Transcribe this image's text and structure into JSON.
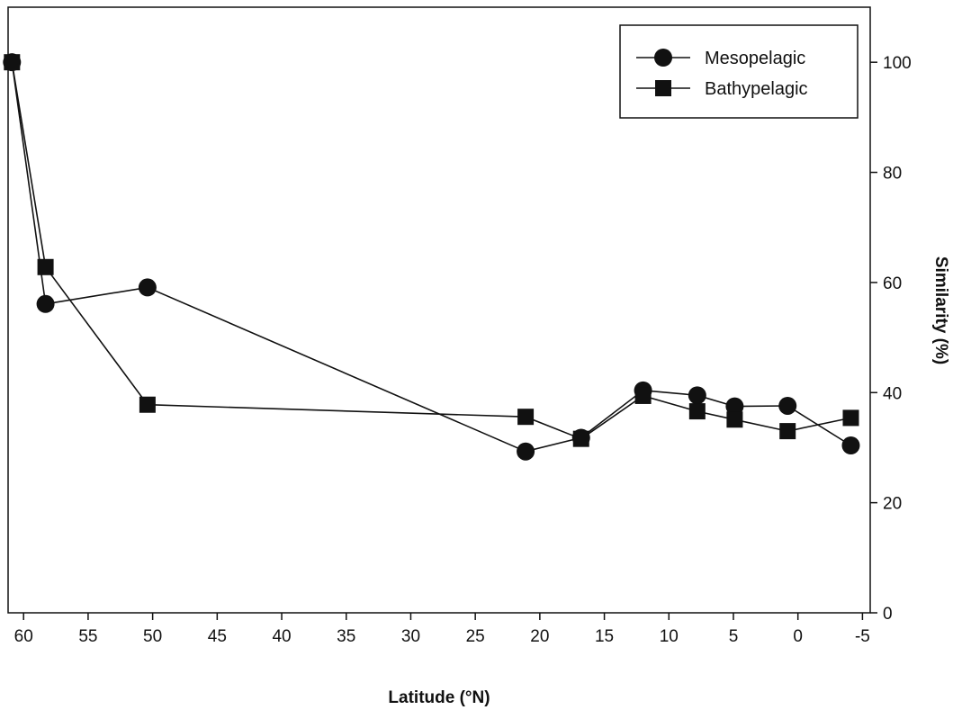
{
  "chart_data": {
    "type": "line",
    "xlabel": "Latitude (°N)",
    "ylabel": "Similarity (%)",
    "xlim": [
      61.2,
      -5.6
    ],
    "ylim": [
      0,
      110
    ],
    "x_ticks": [
      60,
      55,
      50,
      45,
      40,
      35,
      30,
      25,
      20,
      15,
      10,
      5,
      0,
      -5
    ],
    "y_ticks": [
      0,
      20,
      40,
      60,
      80,
      100
    ],
    "y_axis_side": "right",
    "grid": false,
    "legend_position": "top-right",
    "series": [
      {
        "name": "Mesopelagic",
        "marker": "circle",
        "color": "#111111",
        "points": [
          [
            60.9,
            100
          ],
          [
            58.3,
            56.1
          ],
          [
            50.4,
            59.1
          ],
          [
            21.1,
            29.3
          ],
          [
            16.8,
            31.8
          ],
          [
            12.0,
            40.4
          ],
          [
            7.8,
            39.5
          ],
          [
            4.9,
            37.5
          ],
          [
            0.8,
            37.6
          ],
          [
            -4.1,
            30.4
          ]
        ]
      },
      {
        "name": "Bathypelagic",
        "marker": "square",
        "color": "#111111",
        "points": [
          [
            60.9,
            100
          ],
          [
            58.3,
            62.8
          ],
          [
            50.4,
            37.8
          ],
          [
            21.1,
            35.6
          ],
          [
            16.8,
            31.6
          ],
          [
            12.0,
            39.4
          ],
          [
            7.8,
            36.6
          ],
          [
            4.9,
            35.1
          ],
          [
            0.8,
            33.0
          ],
          [
            -4.1,
            35.4
          ]
        ]
      }
    ]
  }
}
